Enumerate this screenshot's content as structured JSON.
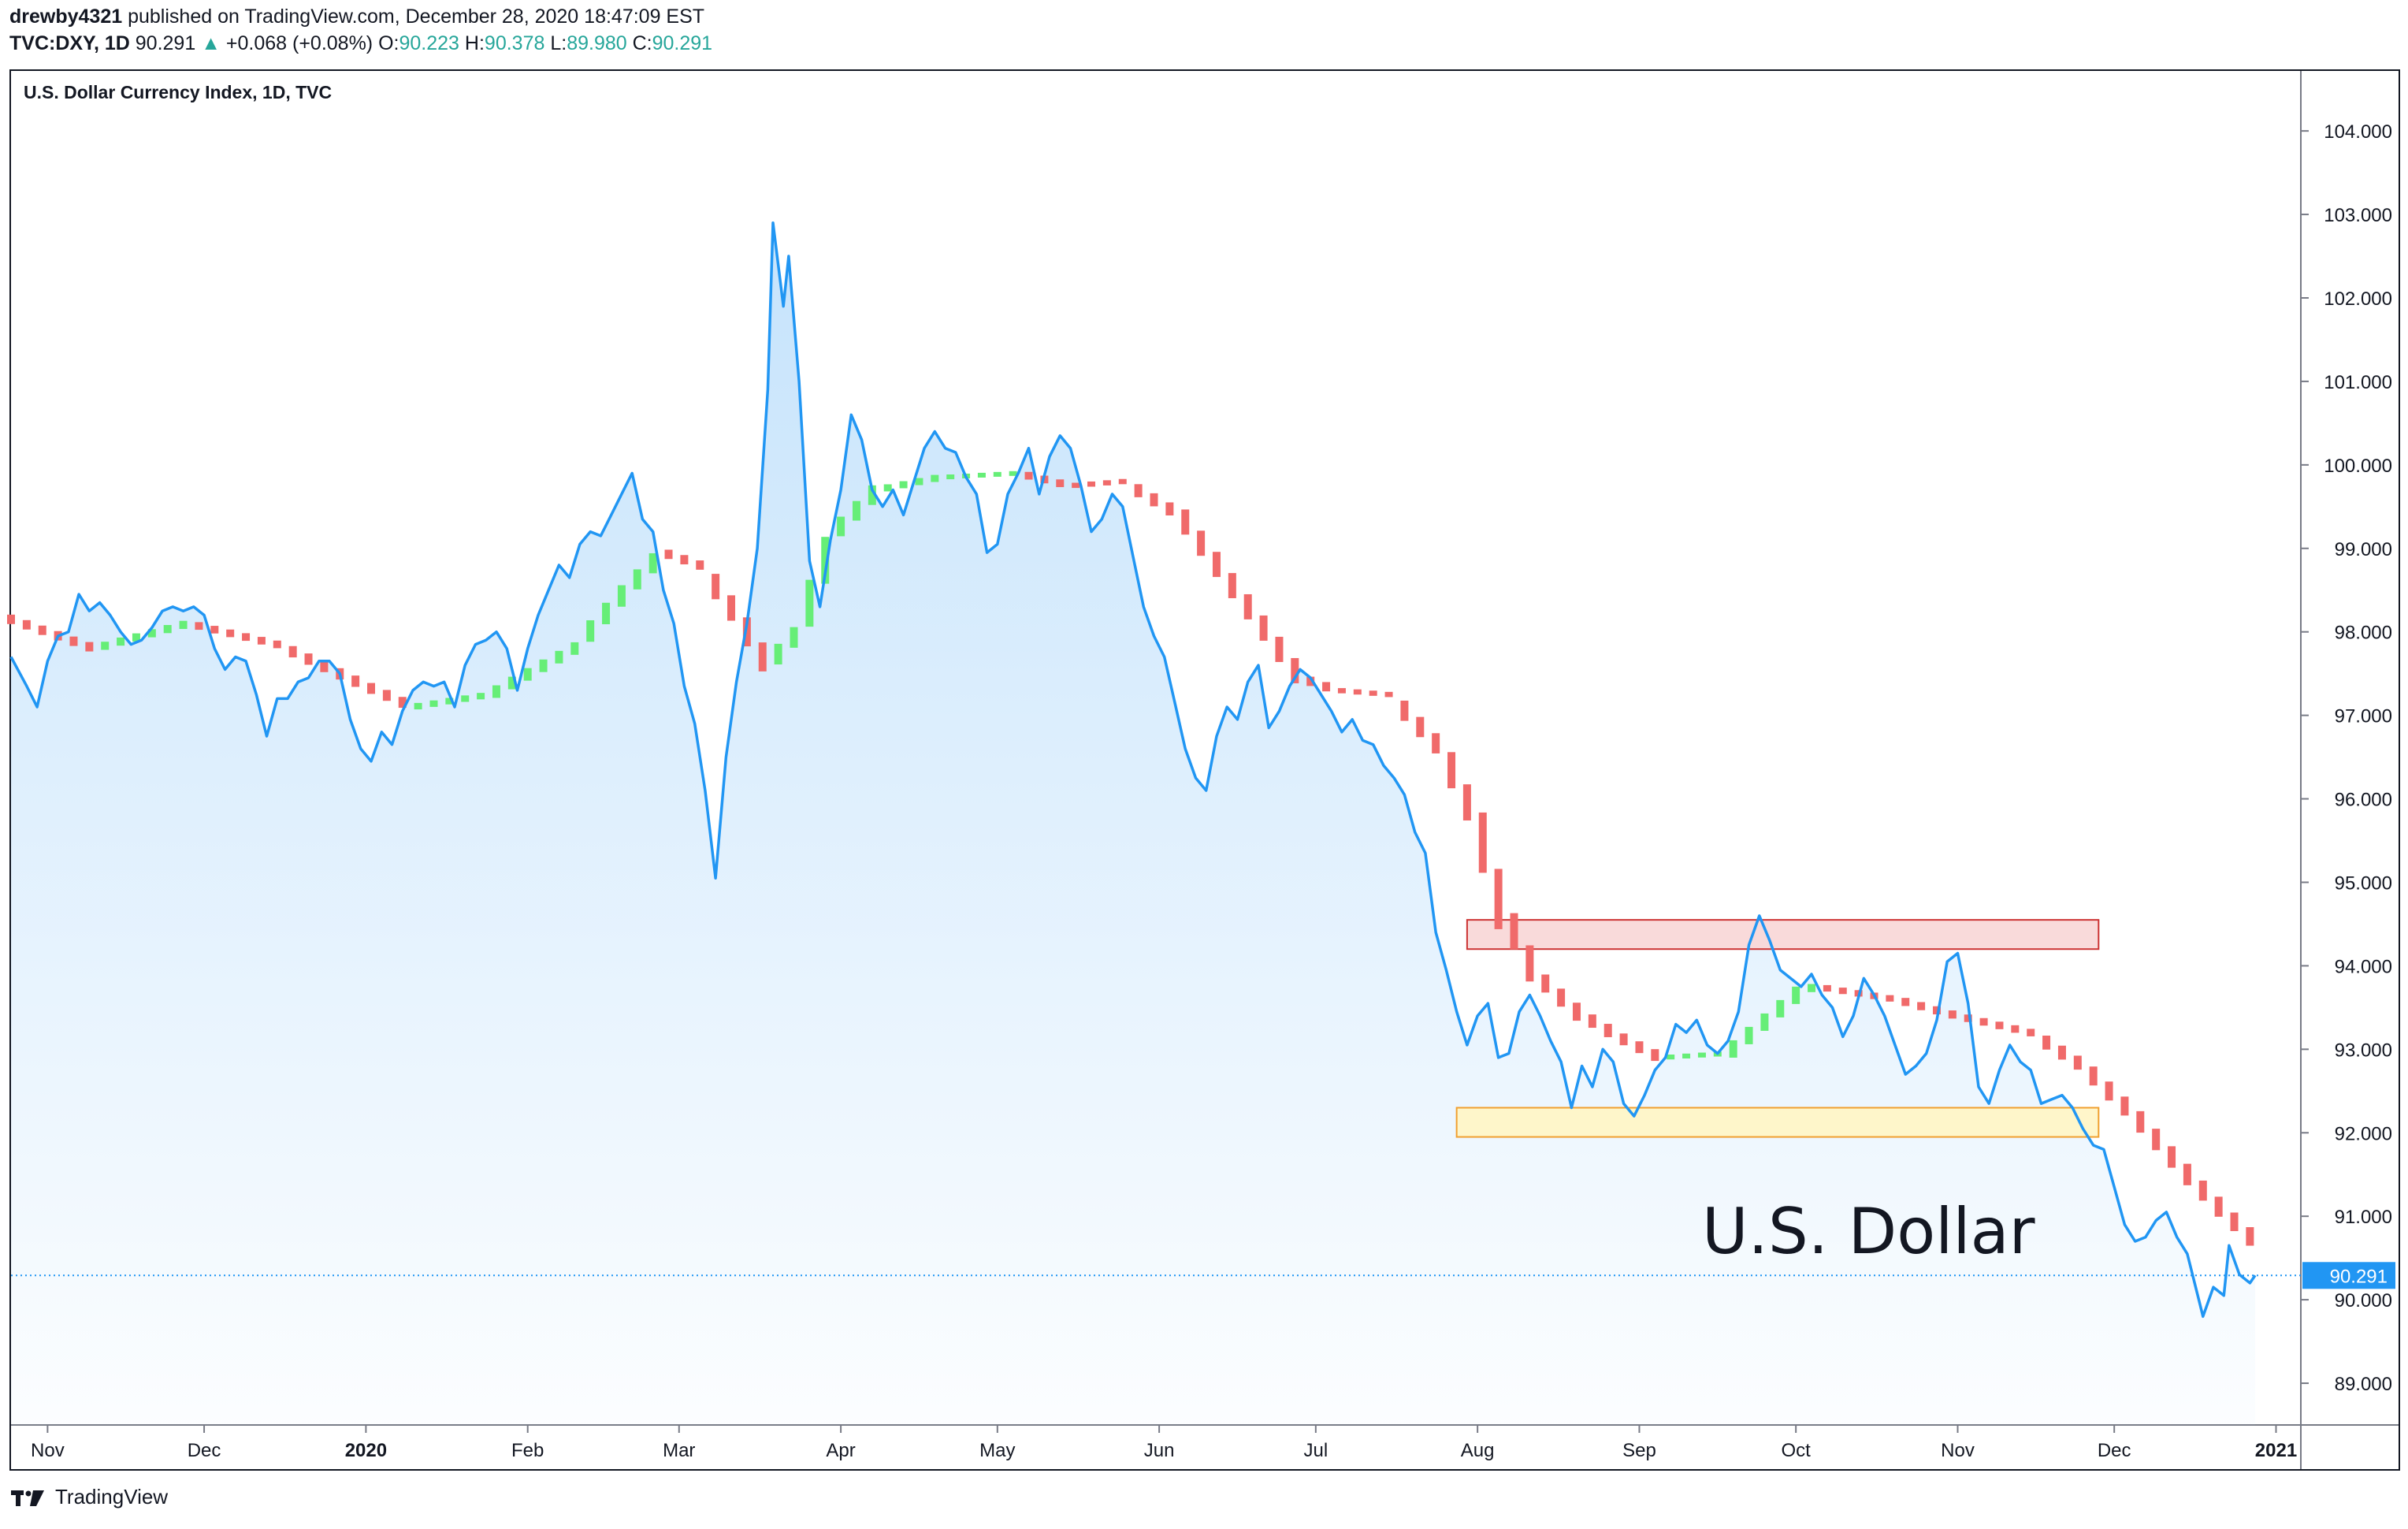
{
  "header": {
    "author": "drewby4321",
    "published_text": "published on TradingView.com, December 28, 2020 18:47:09 EST",
    "ticker": "TVC:DXY, 1D",
    "last": "90.291",
    "change": "+0.068 (+0.08%)",
    "o_label": "O:",
    "o_value": "90.223",
    "h_label": "H:",
    "h_value": "90.378",
    "l_label": "L:",
    "l_value": "89.980",
    "c_label": "C:",
    "c_value": "90.291"
  },
  "footer": {
    "brand": "TradingView"
  },
  "colors": {
    "price_line": "#2196f3",
    "area_fill": "#bbdefb",
    "trend_up": "#66ee77",
    "trend_down": "#f06a6a",
    "resistance_fill": "#f8d6d6",
    "resistance_border": "#cc3333",
    "support_fill": "#fff5c4",
    "support_border": "#f0a030",
    "last_price_badge": "#2196f3"
  },
  "chart_data": {
    "type": "area",
    "title": "U.S. Dollar Currency Index, 1D, TVC",
    "annotation": "U.S. Dollar",
    "last_price_label": "90.291",
    "y_ticks": [
      "104.000",
      "103.000",
      "102.000",
      "101.000",
      "100.000",
      "99.000",
      "98.000",
      "97.000",
      "96.000",
      "95.000",
      "94.000",
      "93.000",
      "92.000",
      "91.000",
      "90.000",
      "89.000"
    ],
    "y_tick_values": [
      104,
      103,
      102,
      101,
      100,
      99,
      98,
      97,
      96,
      95,
      94,
      93,
      92,
      91,
      90,
      89
    ],
    "x_ticks": [
      {
        "label": "Nov",
        "date": "2019-11-01",
        "bold": false
      },
      {
        "label": "Dec",
        "date": "2019-12-01",
        "bold": false
      },
      {
        "label": "2020",
        "date": "2020-01-01",
        "bold": true
      },
      {
        "label": "Feb",
        "date": "2020-02-01",
        "bold": false
      },
      {
        "label": "Mar",
        "date": "2020-03-01",
        "bold": false
      },
      {
        "label": "Apr",
        "date": "2020-04-01",
        "bold": false
      },
      {
        "label": "May",
        "date": "2020-05-01",
        "bold": false
      },
      {
        "label": "Jun",
        "date": "2020-06-01",
        "bold": false
      },
      {
        "label": "Jul",
        "date": "2020-07-01",
        "bold": false
      },
      {
        "label": "Aug",
        "date": "2020-08-01",
        "bold": false
      },
      {
        "label": "Sep",
        "date": "2020-09-01",
        "bold": false
      },
      {
        "label": "Oct",
        "date": "2020-10-01",
        "bold": false
      },
      {
        "label": "Nov",
        "date": "2020-11-01",
        "bold": false
      },
      {
        "label": "Dec",
        "date": "2020-12-01",
        "bold": false
      },
      {
        "label": "2021",
        "date": "2021-01-01",
        "bold": true
      }
    ],
    "x_range": [
      "2019-10-25",
      "2021-01-05"
    ],
    "ylim": [
      88.5,
      104.7
    ],
    "price": [
      [
        "2019-10-25",
        97.7
      ],
      [
        "2019-10-28",
        97.35
      ],
      [
        "2019-10-30",
        97.1
      ],
      [
        "2019-11-01",
        97.65
      ],
      [
        "2019-11-03",
        97.95
      ],
      [
        "2019-11-05",
        98.0
      ],
      [
        "2019-11-07",
        98.45
      ],
      [
        "2019-11-09",
        98.25
      ],
      [
        "2019-11-11",
        98.35
      ],
      [
        "2019-11-13",
        98.2
      ],
      [
        "2019-11-15",
        98.0
      ],
      [
        "2019-11-17",
        97.85
      ],
      [
        "2019-11-19",
        97.9
      ],
      [
        "2019-11-21",
        98.05
      ],
      [
        "2019-11-23",
        98.25
      ],
      [
        "2019-11-25",
        98.3
      ],
      [
        "2019-11-27",
        98.25
      ],
      [
        "2019-11-29",
        98.3
      ],
      [
        "2019-12-01",
        98.2
      ],
      [
        "2019-12-03",
        97.8
      ],
      [
        "2019-12-05",
        97.55
      ],
      [
        "2019-12-07",
        97.7
      ],
      [
        "2019-12-09",
        97.65
      ],
      [
        "2019-12-11",
        97.25
      ],
      [
        "2019-12-13",
        96.75
      ],
      [
        "2019-12-15",
        97.2
      ],
      [
        "2019-12-17",
        97.2
      ],
      [
        "2019-12-19",
        97.4
      ],
      [
        "2019-12-21",
        97.45
      ],
      [
        "2019-12-23",
        97.65
      ],
      [
        "2019-12-25",
        97.65
      ],
      [
        "2019-12-27",
        97.5
      ],
      [
        "2019-12-29",
        96.95
      ],
      [
        "2019-12-31",
        96.6
      ],
      [
        "2020-01-02",
        96.45
      ],
      [
        "2020-01-04",
        96.8
      ],
      [
        "2020-01-06",
        96.65
      ],
      [
        "2020-01-08",
        97.05
      ],
      [
        "2020-01-10",
        97.3
      ],
      [
        "2020-01-12",
        97.4
      ],
      [
        "2020-01-14",
        97.35
      ],
      [
        "2020-01-16",
        97.4
      ],
      [
        "2020-01-18",
        97.1
      ],
      [
        "2020-01-20",
        97.6
      ],
      [
        "2020-01-22",
        97.85
      ],
      [
        "2020-01-24",
        97.9
      ],
      [
        "2020-01-26",
        98.0
      ],
      [
        "2020-01-28",
        97.8
      ],
      [
        "2020-01-30",
        97.3
      ],
      [
        "2020-02-01",
        97.8
      ],
      [
        "2020-02-03",
        98.2
      ],
      [
        "2020-02-05",
        98.5
      ],
      [
        "2020-02-07",
        98.8
      ],
      [
        "2020-02-09",
        98.65
      ],
      [
        "2020-02-11",
        99.05
      ],
      [
        "2020-02-13",
        99.2
      ],
      [
        "2020-02-15",
        99.15
      ],
      [
        "2020-02-17",
        99.4
      ],
      [
        "2020-02-19",
        99.65
      ],
      [
        "2020-02-21",
        99.9
      ],
      [
        "2020-02-23",
        99.35
      ],
      [
        "2020-02-25",
        99.2
      ],
      [
        "2020-02-27",
        98.5
      ],
      [
        "2020-02-29",
        98.1
      ],
      [
        "2020-03-02",
        97.35
      ],
      [
        "2020-03-04",
        96.9
      ],
      [
        "2020-03-06",
        96.1
      ],
      [
        "2020-03-08",
        95.05
      ],
      [
        "2020-03-10",
        96.5
      ],
      [
        "2020-03-12",
        97.4
      ],
      [
        "2020-03-14",
        98.1
      ],
      [
        "2020-03-16",
        99.0
      ],
      [
        "2020-03-18",
        100.9
      ],
      [
        "2020-03-19",
        102.9
      ],
      [
        "2020-03-21",
        101.9
      ],
      [
        "2020-03-22",
        102.5
      ],
      [
        "2020-03-24",
        101.0
      ],
      [
        "2020-03-26",
        98.85
      ],
      [
        "2020-03-28",
        98.3
      ],
      [
        "2020-03-30",
        99.1
      ],
      [
        "2020-04-01",
        99.7
      ],
      [
        "2020-04-03",
        100.6
      ],
      [
        "2020-04-05",
        100.3
      ],
      [
        "2020-04-07",
        99.7
      ],
      [
        "2020-04-09",
        99.5
      ],
      [
        "2020-04-11",
        99.7
      ],
      [
        "2020-04-13",
        99.4
      ],
      [
        "2020-04-15",
        99.8
      ],
      [
        "2020-04-17",
        100.2
      ],
      [
        "2020-04-19",
        100.4
      ],
      [
        "2020-04-21",
        100.2
      ],
      [
        "2020-04-23",
        100.15
      ],
      [
        "2020-04-25",
        99.85
      ],
      [
        "2020-04-27",
        99.65
      ],
      [
        "2020-04-29",
        98.95
      ],
      [
        "2020-05-01",
        99.05
      ],
      [
        "2020-05-03",
        99.65
      ],
      [
        "2020-05-05",
        99.9
      ],
      [
        "2020-05-07",
        100.2
      ],
      [
        "2020-05-09",
        99.65
      ],
      [
        "2020-05-11",
        100.1
      ],
      [
        "2020-05-13",
        100.35
      ],
      [
        "2020-05-15",
        100.2
      ],
      [
        "2020-05-17",
        99.75
      ],
      [
        "2020-05-19",
        99.2
      ],
      [
        "2020-05-21",
        99.35
      ],
      [
        "2020-05-23",
        99.65
      ],
      [
        "2020-05-25",
        99.5
      ],
      [
        "2020-05-27",
        98.9
      ],
      [
        "2020-05-29",
        98.3
      ],
      [
        "2020-05-31",
        97.95
      ],
      [
        "2020-06-02",
        97.7
      ],
      [
        "2020-06-04",
        97.15
      ],
      [
        "2020-06-06",
        96.6
      ],
      [
        "2020-06-08",
        96.25
      ],
      [
        "2020-06-10",
        96.1
      ],
      [
        "2020-06-12",
        96.75
      ],
      [
        "2020-06-14",
        97.1
      ],
      [
        "2020-06-16",
        96.95
      ],
      [
        "2020-06-18",
        97.4
      ],
      [
        "2020-06-20",
        97.6
      ],
      [
        "2020-06-22",
        96.85
      ],
      [
        "2020-06-24",
        97.05
      ],
      [
        "2020-06-26",
        97.35
      ],
      [
        "2020-06-28",
        97.55
      ],
      [
        "2020-06-30",
        97.45
      ],
      [
        "2020-07-02",
        97.25
      ],
      [
        "2020-07-04",
        97.05
      ],
      [
        "2020-07-06",
        96.8
      ],
      [
        "2020-07-08",
        96.95
      ],
      [
        "2020-07-10",
        96.7
      ],
      [
        "2020-07-12",
        96.65
      ],
      [
        "2020-07-14",
        96.4
      ],
      [
        "2020-07-16",
        96.25
      ],
      [
        "2020-07-18",
        96.05
      ],
      [
        "2020-07-20",
        95.6
      ],
      [
        "2020-07-22",
        95.35
      ],
      [
        "2020-07-24",
        94.4
      ],
      [
        "2020-07-26",
        93.95
      ],
      [
        "2020-07-28",
        93.45
      ],
      [
        "2020-07-30",
        93.05
      ],
      [
        "2020-08-01",
        93.4
      ],
      [
        "2020-08-03",
        93.55
      ],
      [
        "2020-08-05",
        92.9
      ],
      [
        "2020-08-07",
        92.95
      ],
      [
        "2020-08-09",
        93.45
      ],
      [
        "2020-08-11",
        93.65
      ],
      [
        "2020-08-13",
        93.4
      ],
      [
        "2020-08-15",
        93.1
      ],
      [
        "2020-08-17",
        92.85
      ],
      [
        "2020-08-19",
        92.3
      ],
      [
        "2020-08-21",
        92.8
      ],
      [
        "2020-08-23",
        92.55
      ],
      [
        "2020-08-25",
        93.0
      ],
      [
        "2020-08-27",
        92.85
      ],
      [
        "2020-08-29",
        92.35
      ],
      [
        "2020-08-31",
        92.2
      ],
      [
        "2020-09-02",
        92.45
      ],
      [
        "2020-09-04",
        92.75
      ],
      [
        "2020-09-06",
        92.9
      ],
      [
        "2020-09-08",
        93.3
      ],
      [
        "2020-09-10",
        93.2
      ],
      [
        "2020-09-12",
        93.35
      ],
      [
        "2020-09-14",
        93.05
      ],
      [
        "2020-09-16",
        92.95
      ],
      [
        "2020-09-18",
        93.1
      ],
      [
        "2020-09-20",
        93.45
      ],
      [
        "2020-09-22",
        94.25
      ],
      [
        "2020-09-24",
        94.6
      ],
      [
        "2020-09-26",
        94.3
      ],
      [
        "2020-09-28",
        93.95
      ],
      [
        "2020-09-30",
        93.85
      ],
      [
        "2020-10-02",
        93.75
      ],
      [
        "2020-10-04",
        93.9
      ],
      [
        "2020-10-06",
        93.65
      ],
      [
        "2020-10-08",
        93.5
      ],
      [
        "2020-10-10",
        93.15
      ],
      [
        "2020-10-12",
        93.4
      ],
      [
        "2020-10-14",
        93.85
      ],
      [
        "2020-10-16",
        93.65
      ],
      [
        "2020-10-18",
        93.4
      ],
      [
        "2020-10-20",
        93.05
      ],
      [
        "2020-10-22",
        92.7
      ],
      [
        "2020-10-24",
        92.8
      ],
      [
        "2020-10-26",
        92.95
      ],
      [
        "2020-10-28",
        93.35
      ],
      [
        "2020-10-30",
        94.05
      ],
      [
        "2020-11-01",
        94.15
      ],
      [
        "2020-11-03",
        93.55
      ],
      [
        "2020-11-05",
        92.55
      ],
      [
        "2020-11-07",
        92.35
      ],
      [
        "2020-11-09",
        92.75
      ],
      [
        "2020-11-11",
        93.05
      ],
      [
        "2020-11-13",
        92.85
      ],
      [
        "2020-11-15",
        92.75
      ],
      [
        "2020-11-17",
        92.35
      ],
      [
        "2020-11-19",
        92.4
      ],
      [
        "2020-11-21",
        92.45
      ],
      [
        "2020-11-23",
        92.3
      ],
      [
        "2020-11-25",
        92.05
      ],
      [
        "2020-11-27",
        91.85
      ],
      [
        "2020-11-29",
        91.8
      ],
      [
        "2020-12-01",
        91.35
      ],
      [
        "2020-12-03",
        90.9
      ],
      [
        "2020-12-05",
        90.7
      ],
      [
        "2020-12-07",
        90.75
      ],
      [
        "2020-12-09",
        90.95
      ],
      [
        "2020-12-11",
        91.05
      ],
      [
        "2020-12-13",
        90.75
      ],
      [
        "2020-12-15",
        90.55
      ],
      [
        "2020-12-17",
        90.05
      ],
      [
        "2020-12-18",
        89.8
      ],
      [
        "2020-12-20",
        90.15
      ],
      [
        "2020-12-22",
        90.05
      ],
      [
        "2020-12-23",
        90.65
      ],
      [
        "2020-12-25",
        90.3
      ],
      [
        "2020-12-27",
        90.2
      ],
      [
        "2020-12-28",
        90.291
      ]
    ],
    "trend": [
      [
        "2019-10-25",
        98.15,
        "down"
      ],
      [
        "2019-11-10",
        97.8,
        "up"
      ],
      [
        "2019-11-28",
        98.1,
        "down"
      ],
      [
        "2019-12-15",
        97.85,
        "down"
      ],
      [
        "2020-01-01",
        97.35,
        "down"
      ],
      [
        "2020-01-10",
        97.1,
        "up"
      ],
      [
        "2020-01-25",
        97.25,
        "up"
      ],
      [
        "2020-02-10",
        97.8,
        "up"
      ],
      [
        "2020-02-20",
        98.5,
        "up"
      ],
      [
        "2020-02-27",
        98.95,
        "down"
      ],
      [
        "2020-03-05",
        98.8,
        "down"
      ],
      [
        "2020-03-12",
        98.2,
        "down"
      ],
      [
        "2020-03-18",
        97.6,
        "up"
      ],
      [
        "2020-03-24",
        98.0,
        "up"
      ],
      [
        "2020-03-31",
        99.2,
        "up"
      ],
      [
        "2020-04-08",
        99.7,
        "up"
      ],
      [
        "2020-04-20",
        99.85,
        "up"
      ],
      [
        "2020-05-05",
        99.9,
        "down"
      ],
      [
        "2020-05-15",
        99.75,
        "down"
      ],
      [
        "2020-05-25",
        99.8,
        "down"
      ],
      [
        "2020-06-05",
        99.4,
        "down"
      ],
      [
        "2020-06-18",
        98.3,
        "down"
      ],
      [
        "2020-06-28",
        97.45,
        "down"
      ],
      [
        "2020-07-05",
        97.3,
        "down"
      ],
      [
        "2020-07-15",
        97.25,
        "down"
      ],
      [
        "2020-07-25",
        96.6,
        "down"
      ],
      [
        "2020-08-01",
        95.7,
        "down"
      ],
      [
        "2020-08-05",
        94.8,
        "down"
      ],
      [
        "2020-08-12",
        93.9,
        "down"
      ],
      [
        "2020-08-20",
        93.45,
        "down"
      ],
      [
        "2020-08-28",
        93.15,
        "down"
      ],
      [
        "2020-09-05",
        92.9,
        "up"
      ],
      [
        "2020-09-18",
        92.95,
        "up"
      ],
      [
        "2020-10-02",
        93.7,
        "up"
      ],
      [
        "2020-10-05",
        93.75,
        "down"
      ],
      [
        "2020-10-20",
        93.6,
        "down"
      ],
      [
        "2020-11-01",
        93.4,
        "down"
      ],
      [
        "2020-11-15",
        93.2,
        "down"
      ],
      [
        "2020-11-25",
        92.8,
        "down"
      ],
      [
        "2020-12-05",
        92.2,
        "down"
      ],
      [
        "2020-12-15",
        91.5,
        "down"
      ],
      [
        "2020-12-22",
        91.05,
        "down"
      ],
      [
        "2020-12-28",
        90.7,
        "down"
      ]
    ],
    "zones": [
      {
        "name": "resistance",
        "start": "2020-07-30",
        "end": "2020-11-28",
        "y_low": 94.2,
        "y_high": 94.55
      },
      {
        "name": "support",
        "start": "2020-07-28",
        "end": "2020-11-28",
        "y_low": 91.95,
        "y_high": 92.3
      }
    ],
    "last_price": 90.291
  }
}
